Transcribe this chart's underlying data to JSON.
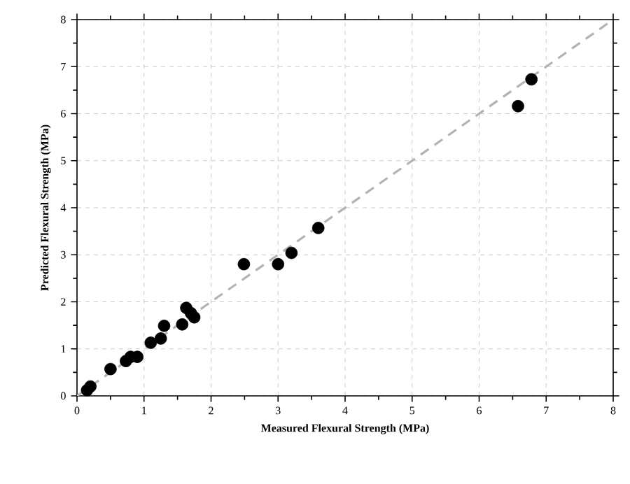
{
  "chart_data": {
    "type": "scatter",
    "xlabel": "Measured Flexural Strength (MPa)",
    "ylabel": "Predicted Flexural Strength (MPa)",
    "xlim": [
      0,
      8
    ],
    "ylim": [
      0,
      8
    ],
    "xticks": [
      0,
      1,
      2,
      3,
      4,
      5,
      6,
      7,
      8
    ],
    "yticks": [
      0,
      1,
      2,
      3,
      4,
      5,
      6,
      7,
      8
    ],
    "grid": true,
    "series": [
      {
        "color": "#000000",
        "marker": "circle",
        "x": [
          0.15,
          0.2,
          0.5,
          0.73,
          0.8,
          0.9,
          1.1,
          1.25,
          1.3,
          1.57,
          1.63,
          1.7,
          1.75,
          2.49,
          3.0,
          3.2,
          3.6,
          6.58,
          6.78
        ],
        "values": [
          0.12,
          0.2,
          0.57,
          0.74,
          0.83,
          0.83,
          1.13,
          1.22,
          1.49,
          1.52,
          1.87,
          1.76,
          1.67,
          2.8,
          2.8,
          3.04,
          3.57,
          6.16,
          6.73
        ]
      },
      {
        "type": "line",
        "color": "#b3b3b3",
        "line_style": "dashed",
        "marker": "none",
        "x": [
          0,
          8
        ],
        "values": [
          0,
          8
        ]
      }
    ]
  }
}
